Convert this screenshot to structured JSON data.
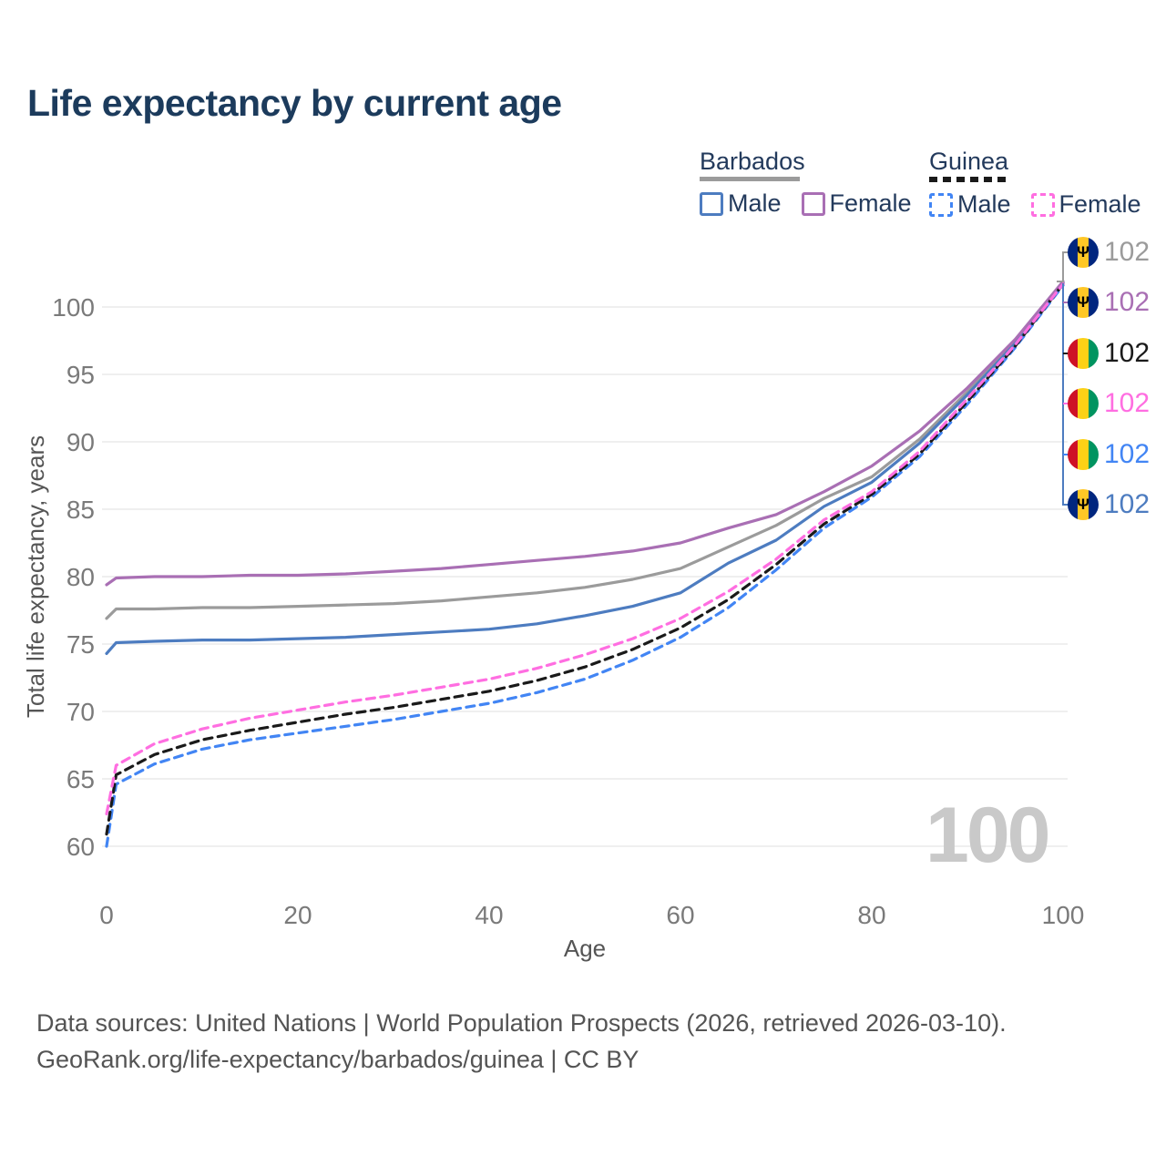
{
  "title": "Life expectancy by current age",
  "watermark": "100",
  "footer": {
    "line1": "Data sources: United Nations | World Population Prospects (2026, retrieved 2026-03-10).",
    "line2": "GeoRank.org/life-expectancy/barbados/guinea | CC BY"
  },
  "icons": {
    "barbados_trident": "Ψ"
  },
  "colors": {
    "title_text": "#1c3b5c",
    "legend_text": "#233a5c",
    "axis_tick_text": "#7a7a7a",
    "axis_title_text": "#555555",
    "gridline": "#eaeaea",
    "watermark": "#c9c9c9",
    "footer_text": "#545454"
  },
  "legend": {
    "groups": [
      {
        "country": "Barbados",
        "line_style": "solid",
        "color": "#9b9b9b",
        "items": [
          {
            "label": "Male",
            "color": "#4d7cc0",
            "dashed": false
          },
          {
            "label": "Female",
            "color": "#a96fb4",
            "dashed": false
          }
        ]
      },
      {
        "country": "Guinea",
        "line_style": "dashed",
        "color": "#1a1a1a",
        "items": [
          {
            "label": "Male",
            "color": "#4285f4",
            "dashed": true
          },
          {
            "label": "Female",
            "color": "#ff6ee1",
            "dashed": true
          }
        ]
      }
    ]
  },
  "chart_data": {
    "type": "line",
    "title": "Life expectancy by current age",
    "xlabel": "Age",
    "ylabel": "Total life expectancy, years",
    "xlim": [
      0,
      100
    ],
    "ylim": [
      60,
      102.5
    ],
    "x_ticks": [
      0,
      20,
      40,
      60,
      80,
      100
    ],
    "y_ticks": [
      60,
      65,
      70,
      75,
      80,
      85,
      90,
      95,
      100
    ],
    "grid": "horizontal",
    "legend_position": "top-right",
    "x": [
      0,
      1,
      5,
      10,
      15,
      20,
      25,
      30,
      35,
      40,
      45,
      50,
      55,
      60,
      65,
      70,
      75,
      80,
      85,
      90,
      95,
      100
    ],
    "series": [
      {
        "key": "barbados_both",
        "name": "Barbados (both sexes)",
        "country": "Barbados",
        "sex": "both",
        "color": "#9b9b9b",
        "dashed": false,
        "end_value_label": "102",
        "values": [
          76.9,
          77.6,
          77.6,
          77.7,
          77.7,
          77.8,
          77.9,
          78.0,
          78.2,
          78.5,
          78.8,
          79.2,
          79.8,
          80.6,
          82.2,
          83.8,
          85.8,
          87.4,
          90.2,
          93.7,
          97.4,
          101.8
        ]
      },
      {
        "key": "barbados_male",
        "name": "Barbados Male",
        "country": "Barbados",
        "sex": "male",
        "color": "#4d7cc0",
        "dashed": false,
        "end_value_label": "102",
        "values": [
          74.3,
          75.1,
          75.2,
          75.3,
          75.3,
          75.4,
          75.5,
          75.7,
          75.9,
          76.1,
          76.5,
          77.1,
          77.8,
          78.8,
          81.0,
          82.7,
          85.2,
          87.0,
          89.9,
          93.5,
          97.3,
          101.8
        ]
      },
      {
        "key": "barbados_female",
        "name": "Barbados Female",
        "country": "Barbados",
        "sex": "female",
        "color": "#a96fb4",
        "dashed": false,
        "end_value_label": "102",
        "values": [
          79.4,
          79.9,
          80.0,
          80.0,
          80.1,
          80.1,
          80.2,
          80.4,
          80.6,
          80.9,
          81.2,
          81.5,
          81.9,
          82.5,
          83.6,
          84.6,
          86.3,
          88.2,
          90.8,
          94.0,
          97.6,
          101.9
        ]
      },
      {
        "key": "guinea_both",
        "name": "Guinea (both sexes)",
        "country": "Guinea",
        "sex": "both",
        "color": "#1a1a1a",
        "dashed": true,
        "end_value_label": "102",
        "values": [
          60.9,
          65.3,
          66.8,
          67.9,
          68.6,
          69.2,
          69.8,
          70.3,
          70.9,
          71.5,
          72.3,
          73.3,
          74.6,
          76.2,
          78.3,
          80.9,
          83.9,
          86.1,
          89.1,
          93.0,
          97.1,
          101.7
        ]
      },
      {
        "key": "guinea_male",
        "name": "Guinea Male",
        "country": "Guinea",
        "sex": "male",
        "color": "#4285f4",
        "dashed": true,
        "end_value_label": "102",
        "values": [
          60.0,
          64.6,
          66.1,
          67.2,
          67.9,
          68.4,
          68.9,
          69.4,
          70.0,
          70.6,
          71.4,
          72.4,
          73.8,
          75.5,
          77.7,
          80.5,
          83.6,
          85.9,
          88.9,
          92.8,
          97.0,
          101.6
        ]
      },
      {
        "key": "guinea_female",
        "name": "Guinea Female",
        "country": "Guinea",
        "sex": "female",
        "color": "#ff6ee1",
        "dashed": true,
        "end_value_label": "102",
        "values": [
          62.4,
          66.0,
          67.6,
          68.7,
          69.5,
          70.1,
          70.7,
          71.2,
          71.8,
          72.4,
          73.2,
          74.2,
          75.4,
          76.9,
          78.9,
          81.3,
          84.2,
          86.3,
          89.3,
          93.2,
          97.2,
          101.7
        ]
      }
    ],
    "end_labels_top_to_bottom": [
      {
        "series_key": "barbados_both",
        "value": "102",
        "color": "#9b9b9b",
        "flag": "barbados"
      },
      {
        "series_key": "barbados_female",
        "value": "102",
        "color": "#a96fb4",
        "flag": "barbados"
      },
      {
        "series_key": "guinea_both",
        "value": "102",
        "color": "#1a1a1a",
        "flag": "guinea"
      },
      {
        "series_key": "guinea_female",
        "value": "102",
        "color": "#ff6ee1",
        "flag": "guinea"
      },
      {
        "series_key": "guinea_male",
        "value": "102",
        "color": "#4285f4",
        "flag": "guinea"
      },
      {
        "series_key": "barbados_male",
        "value": "102",
        "color": "#4d7cc0",
        "flag": "barbados"
      }
    ],
    "flags": {
      "barbados": [
        "#00267f",
        "#ffc726",
        "#00267f"
      ],
      "guinea": [
        "#ce1126",
        "#fcd116",
        "#009460"
      ]
    }
  }
}
